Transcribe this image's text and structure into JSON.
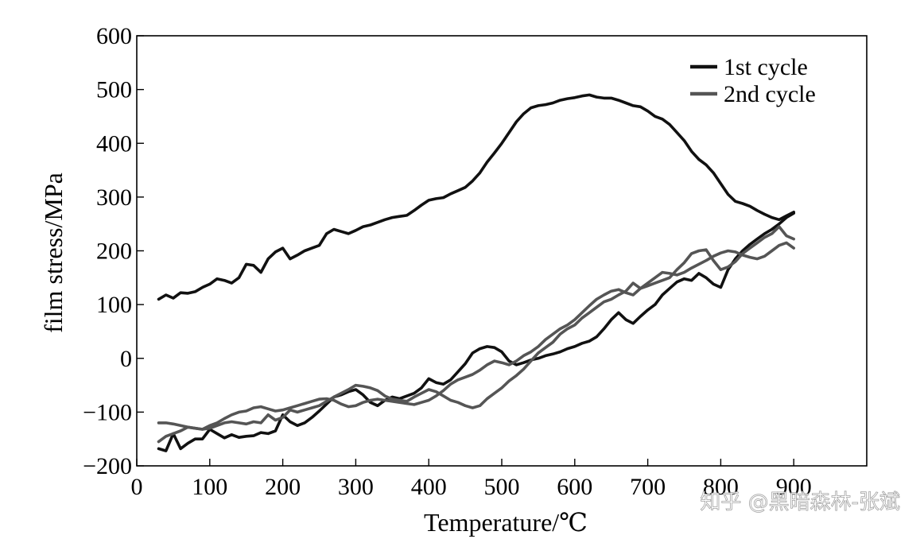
{
  "watermark": "知乎 @黑暗森林-张斌",
  "chart_data": {
    "type": "line",
    "title": "",
    "xlabel": "Temperature/℃",
    "ylabel": "film stress/MPa",
    "xlim": [
      0,
      1000
    ],
    "ylim": [
      -200,
      600
    ],
    "x_ticks": [
      0,
      100,
      200,
      300,
      400,
      500,
      600,
      700,
      800,
      900
    ],
    "y_ticks": [
      600,
      500,
      400,
      300,
      200,
      100,
      0,
      -100,
      -200
    ],
    "x_tick_labels": [
      "0",
      "100",
      "200",
      "300",
      "400",
      "500",
      "600",
      "700",
      "800",
      "900"
    ],
    "y_tick_labels": [
      "600",
      "500",
      "400",
      "300",
      "200",
      "100",
      "0",
      "−100",
      "−200"
    ],
    "legend": {
      "position": "top-right",
      "entries": [
        "1st cycle",
        "2nd cycle"
      ]
    },
    "series": [
      {
        "name": "1st cycle heating",
        "legend": "1st cycle",
        "color": "#111111",
        "x": [
          30,
          40,
          50,
          60,
          70,
          80,
          90,
          100,
          110,
          120,
          130,
          140,
          150,
          160,
          170,
          180,
          190,
          200,
          210,
          220,
          230,
          240,
          250,
          260,
          270,
          280,
          290,
          300,
          310,
          320,
          330,
          340,
          350,
          360,
          370,
          380,
          390,
          400,
          410,
          420,
          430,
          440,
          450,
          460,
          470,
          480,
          490,
          500,
          510,
          520,
          530,
          540,
          550,
          560,
          570,
          580,
          590,
          600,
          610,
          620,
          630,
          640,
          650,
          660,
          670,
          680,
          690,
          700,
          710,
          720,
          730,
          740,
          750,
          760,
          770,
          780,
          790,
          800,
          810,
          820,
          830,
          840,
          850,
          860,
          870,
          880,
          890,
          900
        ],
        "values": [
          110,
          118,
          112,
          122,
          121,
          124,
          132,
          138,
          148,
          145,
          140,
          150,
          175,
          173,
          160,
          185,
          198,
          205,
          185,
          192,
          200,
          205,
          210,
          232,
          240,
          236,
          232,
          238,
          245,
          248,
          253,
          258,
          262,
          264,
          266,
          275,
          285,
          294,
          297,
          299,
          306,
          312,
          318,
          330,
          345,
          365,
          382,
          400,
          420,
          440,
          455,
          466,
          470,
          472,
          475,
          480,
          483,
          485,
          488,
          490,
          486,
          484,
          484,
          480,
          475,
          470,
          468,
          460,
          450,
          445,
          435,
          420,
          405,
          385,
          370,
          360,
          345,
          325,
          305,
          292,
          288,
          283,
          275,
          268,
          262,
          258,
          265,
          272
        ]
      },
      {
        "name": "1st cycle cooling",
        "color": "#111111",
        "x": [
          900,
          890,
          880,
          870,
          860,
          850,
          840,
          830,
          820,
          810,
          800,
          790,
          780,
          770,
          760,
          750,
          740,
          730,
          720,
          710,
          700,
          690,
          680,
          670,
          660,
          650,
          640,
          630,
          620,
          610,
          600,
          590,
          580,
          570,
          560,
          550,
          540,
          530,
          520,
          510,
          500,
          490,
          480,
          470,
          460,
          450,
          440,
          430,
          420,
          410,
          400,
          390,
          380,
          370,
          360,
          350,
          340,
          330,
          320,
          310,
          300,
          290,
          280,
          270,
          260,
          250,
          240,
          230,
          220,
          210,
          200,
          190,
          180,
          170,
          160,
          150,
          140,
          130,
          120,
          110,
          100,
          90,
          80,
          70,
          60,
          50,
          40,
          30
        ],
        "values": [
          270,
          262,
          250,
          240,
          232,
          222,
          212,
          200,
          185,
          165,
          132,
          138,
          150,
          158,
          145,
          148,
          142,
          130,
          118,
          100,
          90,
          78,
          65,
          72,
          85,
          72,
          55,
          40,
          32,
          28,
          22,
          18,
          12,
          8,
          5,
          0,
          -3,
          -8,
          -12,
          -5,
          12,
          20,
          22,
          18,
          10,
          -10,
          -25,
          -40,
          -48,
          -45,
          -38,
          -55,
          -65,
          -70,
          -75,
          -72,
          -78,
          -88,
          -82,
          -68,
          -58,
          -62,
          -68,
          -72,
          -85,
          -98,
          -110,
          -120,
          -125,
          -118,
          -105,
          -135,
          -140,
          -138,
          -144,
          -145,
          -147,
          -142,
          -148,
          -140,
          -132,
          -150,
          -150,
          -158,
          -168,
          -140,
          -172,
          -168
        ]
      },
      {
        "name": "2nd cycle heating",
        "legend": "2nd cycle",
        "color": "#555555",
        "x": [
          30,
          40,
          50,
          60,
          70,
          80,
          90,
          100,
          110,
          120,
          130,
          140,
          150,
          160,
          170,
          180,
          190,
          200,
          210,
          220,
          230,
          240,
          250,
          260,
          270,
          280,
          290,
          300,
          310,
          320,
          330,
          340,
          350,
          360,
          370,
          380,
          390,
          400,
          410,
          420,
          430,
          440,
          450,
          460,
          470,
          480,
          490,
          500,
          510,
          520,
          530,
          540,
          550,
          560,
          570,
          580,
          590,
          600,
          610,
          620,
          630,
          640,
          650,
          660,
          670,
          680,
          690,
          700,
          710,
          720,
          730,
          740,
          750,
          760,
          770,
          780,
          790,
          800,
          810,
          820,
          830,
          840,
          850,
          860,
          870,
          880,
          890,
          900
        ],
        "values": [
          -120,
          -120,
          -122,
          -125,
          -128,
          -130,
          -132,
          -125,
          -120,
          -112,
          -105,
          -100,
          -98,
          -92,
          -90,
          -94,
          -98,
          -96,
          -92,
          -88,
          -84,
          -80,
          -76,
          -75,
          -78,
          -85,
          -90,
          -88,
          -82,
          -78,
          -76,
          -78,
          -80,
          -82,
          -84,
          -86,
          -82,
          -78,
          -70,
          -60,
          -48,
          -40,
          -35,
          -30,
          -22,
          -12,
          -5,
          -8,
          -12,
          -5,
          5,
          12,
          22,
          35,
          45,
          55,
          62,
          72,
          85,
          98,
          110,
          118,
          125,
          128,
          122,
          118,
          130,
          140,
          150,
          160,
          158,
          155,
          160,
          168,
          175,
          182,
          190,
          196,
          200,
          198,
          192,
          188,
          185,
          190,
          200,
          210,
          215,
          205
        ]
      },
      {
        "name": "2nd cycle cooling",
        "color": "#555555",
        "x": [
          900,
          890,
          880,
          870,
          860,
          850,
          840,
          830,
          820,
          810,
          800,
          790,
          780,
          770,
          760,
          750,
          740,
          730,
          720,
          710,
          700,
          690,
          680,
          670,
          660,
          650,
          640,
          630,
          620,
          610,
          600,
          590,
          580,
          570,
          560,
          550,
          540,
          530,
          520,
          510,
          500,
          490,
          480,
          470,
          460,
          450,
          440,
          430,
          420,
          410,
          400,
          390,
          380,
          370,
          360,
          350,
          340,
          330,
          320,
          310,
          300,
          290,
          280,
          270,
          260,
          250,
          240,
          230,
          220,
          210,
          200,
          190,
          180,
          170,
          160,
          150,
          140,
          130,
          120,
          110,
          100,
          90,
          80,
          70,
          60,
          50,
          40,
          30
        ],
        "values": [
          222,
          228,
          245,
          232,
          225,
          215,
          205,
          195,
          180,
          170,
          165,
          182,
          202,
          200,
          195,
          178,
          165,
          150,
          145,
          140,
          135,
          130,
          140,
          125,
          118,
          110,
          105,
          95,
          85,
          75,
          62,
          55,
          45,
          30,
          20,
          10,
          -5,
          -20,
          -32,
          -42,
          -55,
          -65,
          -75,
          -88,
          -92,
          -88,
          -82,
          -78,
          -70,
          -62,
          -58,
          -65,
          -72,
          -80,
          -78,
          -76,
          -70,
          -60,
          -55,
          -52,
          -50,
          -58,
          -65,
          -72,
          -80,
          -88,
          -92,
          -96,
          -100,
          -96,
          -110,
          -115,
          -105,
          -120,
          -118,
          -122,
          -120,
          -118,
          -120,
          -125,
          -130,
          -132,
          -130,
          -128,
          -135,
          -140,
          -145,
          -155
        ]
      }
    ]
  }
}
